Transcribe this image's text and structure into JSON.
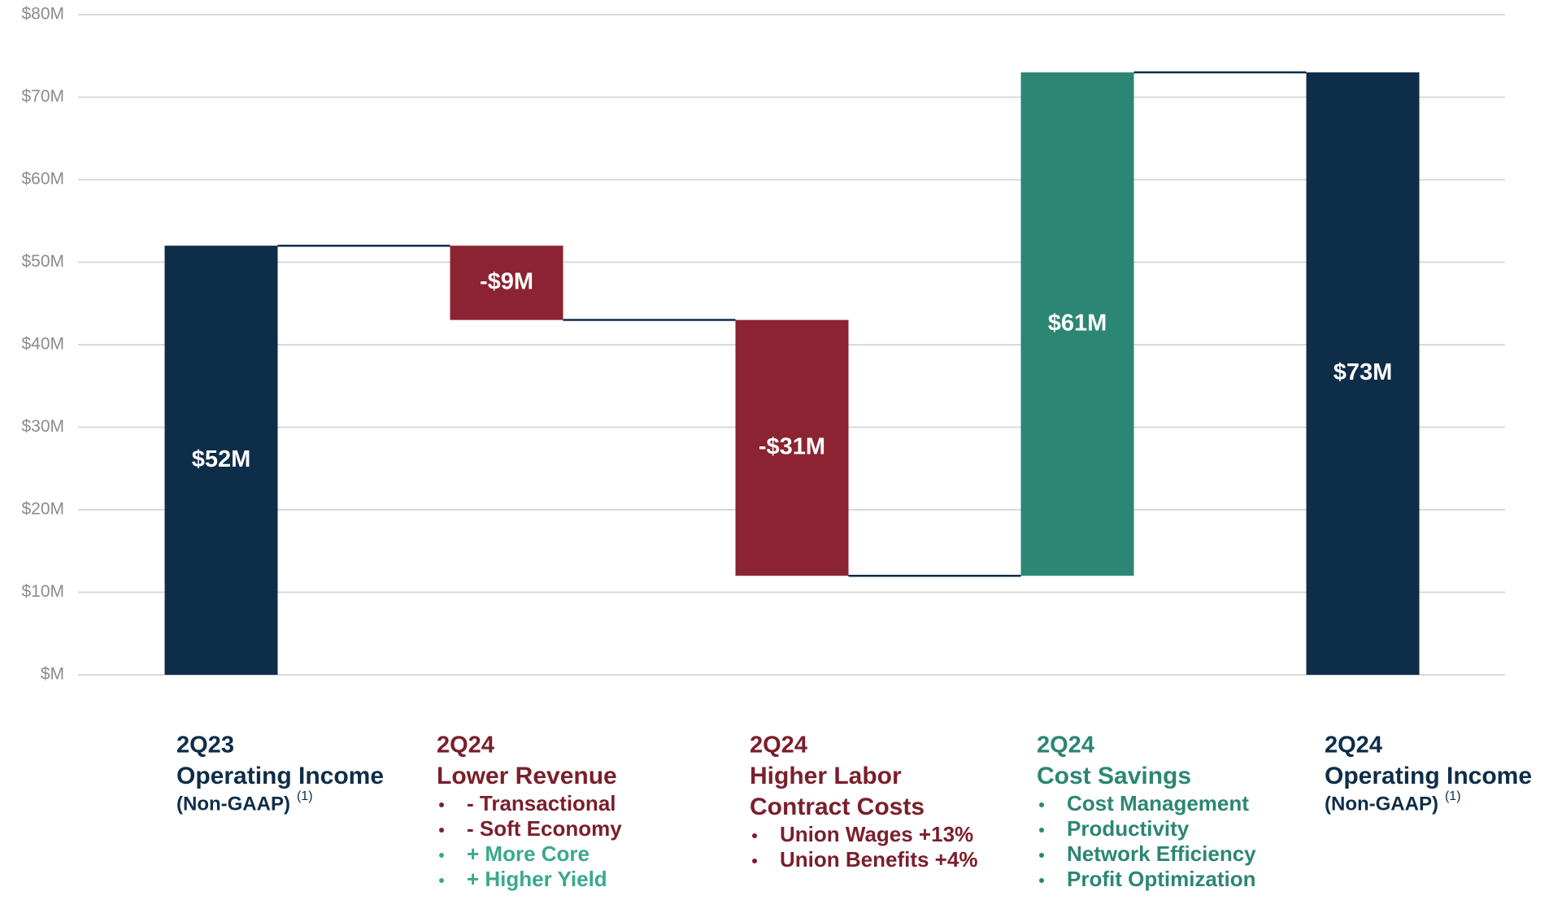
{
  "chart_data": {
    "type": "waterfall",
    "categories": [
      {
        "period": "2Q23",
        "label": [
          "Operating Income"
        ],
        "note": "(Non-GAAP)",
        "footnote": "(1)",
        "color": "#0e2d48",
        "bullets": []
      },
      {
        "period": "2Q24",
        "label": [
          "Lower Revenue"
        ],
        "color": "#7a1f2b",
        "bullets": [
          {
            "text": "- Transactional",
            "color": "#7a1f2b"
          },
          {
            "text": "- Soft Economy",
            "color": "#7a1f2b"
          },
          {
            "text": "+ More Core",
            "color": "#3aa98c"
          },
          {
            "text": "+ Higher Yield",
            "color": "#3aa98c"
          }
        ]
      },
      {
        "period": "2Q24",
        "label": [
          "Higher Labor",
          "Contract Costs"
        ],
        "color": "#7a1f2b",
        "bullets": [
          {
            "text": "Union Wages +13%",
            "color": "#7a1f2b"
          },
          {
            "text": "Union Benefits +4%",
            "color": "#7a1f2b"
          }
        ]
      },
      {
        "period": "2Q24",
        "label": [
          "Cost Savings"
        ],
        "color": "#2c8674",
        "bullets": [
          {
            "text": "Cost Management",
            "color": "#2c8674"
          },
          {
            "text": "Productivity",
            "color": "#2c8674"
          },
          {
            "text": "Network Efficiency",
            "color": "#2c8674"
          },
          {
            "text": "Profit Optimization",
            "color": "#2c8674"
          }
        ]
      },
      {
        "period": "2Q24",
        "label": [
          "Operating Income"
        ],
        "note": "(Non-GAAP)",
        "footnote": "(1)",
        "color": "#0e2d48",
        "bullets": []
      }
    ],
    "values": [
      52,
      -9,
      -31,
      61,
      73
    ],
    "value_labels": [
      "$52M",
      "-$9M",
      "-$31M",
      "$61M",
      "$73M"
    ],
    "totals": [
      true,
      false,
      false,
      false,
      true
    ],
    "colors": [
      "#0e2d48",
      "#8b2332",
      "#8b2332",
      "#2c8674",
      "#0e2d48"
    ],
    "connector_color": "#0e2d48",
    "ylim": [
      0,
      80
    ],
    "yticks": [
      {
        "value": 0,
        "label": "$M"
      },
      {
        "value": 10,
        "label": "$10M"
      },
      {
        "value": 20,
        "label": "$20M"
      },
      {
        "value": 30,
        "label": "$30M"
      },
      {
        "value": 40,
        "label": "$40M"
      },
      {
        "value": 50,
        "label": "$50M"
      },
      {
        "value": 60,
        "label": "$60M"
      },
      {
        "value": 70,
        "label": "$70M"
      },
      {
        "value": 80,
        "label": "$80M"
      }
    ],
    "grid": true
  }
}
